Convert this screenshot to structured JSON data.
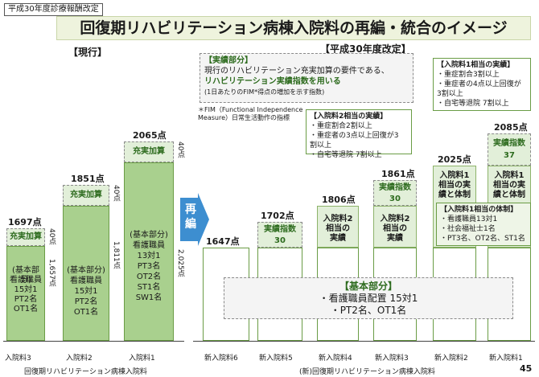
{
  "header": {
    "tag": "平成30年度診療報酬改定",
    "title": "回復期リハビリテーション病棟入院料の再編・統合のイメージ",
    "page_number": "45"
  },
  "current": {
    "section": "【現行】",
    "axis_label": "回復期リハビリテーション病棟入院料",
    "bars": [
      {
        "name": "入院料3",
        "total": "1697点",
        "addon": "充実加算",
        "addon_value": "40点",
        "base_value": "1,657点",
        "base_text": [
          "(基本部分)",
          "看護職員",
          "15対1",
          "PT2名",
          "OT1名"
        ]
      },
      {
        "name": "入院料2",
        "total": "1851点",
        "addon": "充実加算",
        "addon_value": "40点",
        "base_value": "1,811点",
        "base_text": [
          "(基本部分)",
          "看護職員",
          "15対1",
          "PT2名",
          "OT1名"
        ]
      },
      {
        "name": "入院料1",
        "total": "2065点",
        "addon": "充実加算",
        "addon_value": "40点",
        "base_value": "2,025点",
        "base_text": [
          "(基本部分)",
          "看護職員",
          "13対1",
          "PT3名",
          "OT2名",
          "ST1名",
          "SW1名"
        ]
      }
    ]
  },
  "arrow": {
    "text": [
      "再",
      "編"
    ]
  },
  "revised": {
    "section": "【平成30年度改定】",
    "axis_label": "(新)回復期リハビリテーション病棟入院料",
    "performance_box": {
      "title": "【実績部分】",
      "lines": [
        "現行のリハビリテーション充実加算の要件である、",
        "リハビリテーション実績指数を用いる",
        "(1日あたりのFIM*得点の増加を示す指数)"
      ],
      "footnote": [
        "＊FIM（Functional Independence",
        "Measure）日常生活動作の指標"
      ]
    },
    "note2": {
      "title": "【入院料2相当の実績】",
      "lines": [
        "・重症割合2割以上",
        "・重症者の3点以上回復が3",
        "割以上",
        "・自宅等退院 7割以上"
      ]
    },
    "note1": {
      "title": "【入院料1相当の実績】",
      "lines": [
        "・重症割合3割以上",
        "・重症者の4点以上回復が",
        "3割以上",
        "・自宅等退院 7割以上"
      ]
    },
    "note_structure": {
      "title": "【入院料1相当の体制】",
      "lines": [
        "・看護職員13対1",
        "・社会福祉士1名",
        "・PT3名、OT2名、ST1名"
      ]
    },
    "base_box": {
      "title": "【基本部分】",
      "lines": [
        "・看護職員配置 15対1",
        "・PT2名、OT1名"
      ]
    },
    "bars": [
      {
        "name": "新入院料6",
        "total": "1647点"
      },
      {
        "name": "新入院料5",
        "total": "1702点",
        "index_label": "実績指数",
        "index_value": "30"
      },
      {
        "name": "新入院料4",
        "total": "1806点",
        "mid": [
          "入院料2",
          "相当の",
          "実績"
        ]
      },
      {
        "name": "新入院料3",
        "total": "1861点",
        "index_label": "実績指数",
        "index_value": "30",
        "mid": [
          "入院料2",
          "相当の",
          "実績"
        ]
      },
      {
        "name": "新入院料2",
        "total": "2025点",
        "mid": [
          "入院料1",
          "相当の実",
          "績と体制"
        ]
      },
      {
        "name": "新入院料1",
        "total": "2085点",
        "index_label": "実績指数",
        "index_value": "37",
        "mid": [
          "入院料1",
          "相当の実",
          "績と体制"
        ]
      }
    ]
  }
}
